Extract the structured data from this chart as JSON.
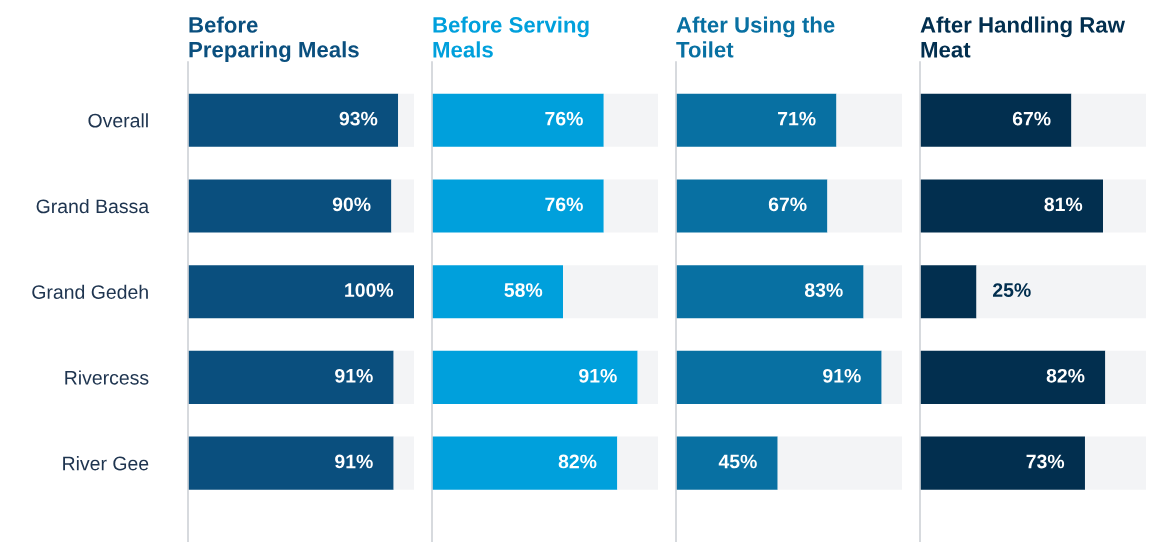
{
  "chart_data": [
    {
      "type": "bar",
      "orientation": "horizontal",
      "stacked": true,
      "title": "Before\nPreparing Meals",
      "categories": [
        "Overall",
        "Grand Bassa",
        "Grand Gedeh",
        "Rivercess",
        "River Gee"
      ],
      "xlim": [
        0,
        100
      ],
      "tick_labels": "y",
      "series": [
        {
          "color": "#0a4f7e",
          "values": [
            93,
            90,
            100,
            91,
            91
          ],
          "value_labels": [
            "93%",
            "90%",
            "100%",
            "91%",
            "91%"
          ]
        },
        {
          "color": "#f3f4f6",
          "values": [
            7,
            10,
            0,
            9,
            9
          ]
        }
      ]
    },
    {
      "type": "bar",
      "orientation": "horizontal",
      "stacked": true,
      "title": "Before Serving\nMeals",
      "categories": [
        null,
        null,
        null,
        null,
        null
      ],
      "xlim": [
        0,
        100
      ],
      "tick_labels": false,
      "series": [
        {
          "color": "#00a0dc",
          "values": [
            76,
            76,
            58,
            91,
            82
          ],
          "value_labels": [
            "76%",
            "76%",
            "58%",
            "91%",
            "82%"
          ]
        },
        {
          "color": "#f3f4f6",
          "values": [
            24,
            24,
            42,
            9,
            18
          ]
        }
      ]
    },
    {
      "type": "bar",
      "orientation": "horizontal",
      "stacked": true,
      "title": "After Using the\nToilet",
      "categories": [
        null,
        null,
        null,
        null,
        null
      ],
      "xlim": [
        0,
        100
      ],
      "tick_labels": false,
      "series": [
        {
          "color": "#0870a2",
          "values": [
            71,
            67,
            83,
            91,
            45
          ],
          "value_labels": [
            "71%",
            "67%",
            "83%",
            "91%",
            "45%"
          ]
        },
        {
          "color": "#f3f4f6",
          "values": [
            29,
            33,
            17,
            9,
            55
          ]
        }
      ]
    },
    {
      "type": "bar",
      "orientation": "horizontal",
      "stacked": true,
      "title": "After Handling Raw\nMeat",
      "categories": [
        null,
        null,
        null,
        null,
        null
      ],
      "xlim": [
        0,
        100
      ],
      "tick_labels": false,
      "series": [
        {
          "color": "#022f4f",
          "values": [
            67,
            81,
            25,
            82,
            73
          ],
          "value_labels": [
            "67%",
            "81%",
            "25%",
            "82%",
            "73%"
          ]
        },
        {
          "color": "#f3f4f6",
          "values": [
            33,
            19,
            75,
            18,
            27
          ]
        }
      ]
    }
  ]
}
